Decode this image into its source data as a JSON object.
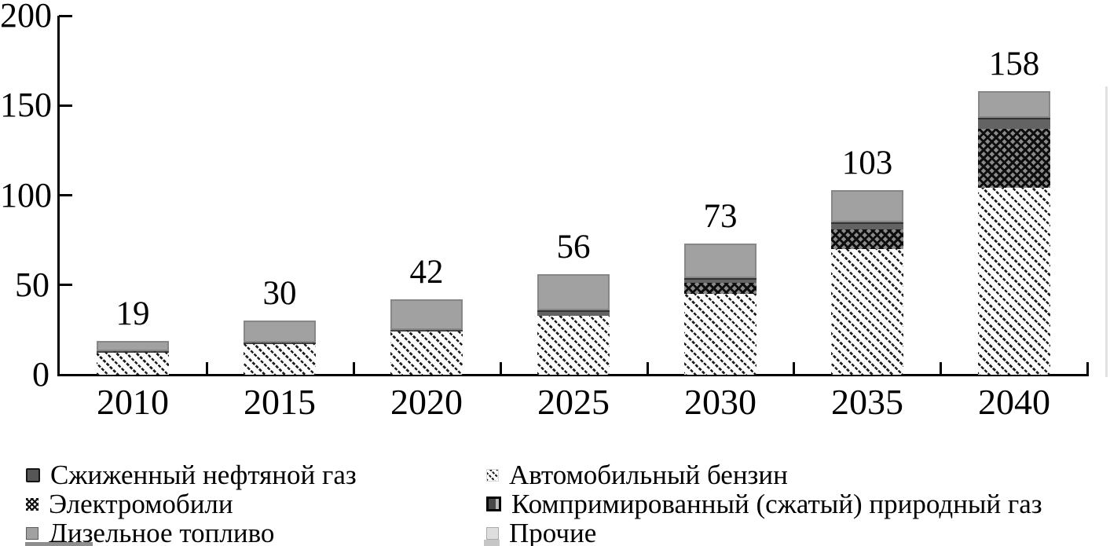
{
  "chart_data": {
    "type": "bar",
    "stacked": true,
    "title": "",
    "xlabel": "",
    "ylabel": "",
    "categories": [
      "2010",
      "2015",
      "2020",
      "2025",
      "2030",
      "2035",
      "2040"
    ],
    "series": [
      {
        "key": "gasoline",
        "name": "Автомобильный бензин",
        "values": [
          13,
          18,
          25,
          33,
          45,
          70,
          104
        ]
      },
      {
        "key": "ev",
        "name": "Электромобили",
        "values": [
          0,
          0,
          0,
          0,
          6,
          11,
          33
        ]
      },
      {
        "key": "lpg",
        "name": "Сжиженный нефтяной газ",
        "values": [
          0,
          0,
          0,
          3,
          3,
          4,
          6
        ]
      },
      {
        "key": "diesel",
        "name": "Дизельное топливо",
        "values": [
          6,
          12,
          17,
          20,
          19,
          18,
          15
        ]
      },
      {
        "key": "cng",
        "name": "Компримированный (сжатый) природный газ",
        "values": [
          0,
          0,
          0,
          0,
          0,
          0,
          0
        ]
      },
      {
        "key": "other",
        "name": "Прочие",
        "values": [
          0,
          0,
          0,
          0,
          0,
          0,
          0
        ]
      }
    ],
    "totals": [
      "19",
      "30",
      "42",
      "56",
      "73",
      "103",
      "158"
    ],
    "y_axis": {
      "ticks": [
        0,
        50,
        100,
        150,
        200
      ],
      "min": 0,
      "max": 200,
      "grid": false
    },
    "legend": {
      "position": "bottom",
      "columns": [
        [
          "lpg",
          "ev",
          "diesel"
        ],
        [
          "gasoline",
          "cng",
          "other"
        ]
      ]
    }
  },
  "colors": {
    "axis": "#000000",
    "diesel_fill": "#a1a1a1",
    "lpg_fill": "#636363",
    "cng_fill": "#3a3a3a",
    "other_fill": "#dcdcdc",
    "pattern_ink": "#1c1c1c",
    "background": "#ffffff"
  }
}
